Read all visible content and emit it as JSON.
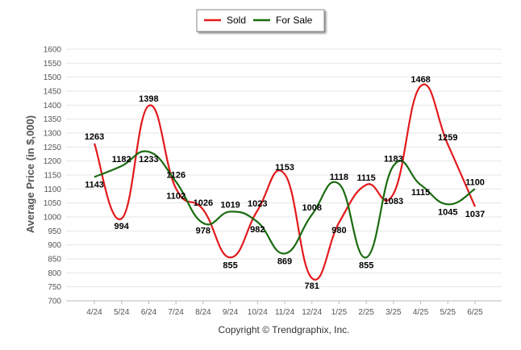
{
  "chart_data": {
    "type": "line",
    "categories": [
      "4/24",
      "5/24",
      "6/24",
      "7/24",
      "8/24",
      "9/24",
      "10/24",
      "11/24",
      "12/24",
      "1/25",
      "2/25",
      "3/25",
      "4/25",
      "5/25",
      "6/25"
    ],
    "series": [
      {
        "name": "Sold",
        "color": "#e31a1c",
        "values": [
          1263,
          994,
          1398,
          1102,
          1026,
          855,
          1023,
          1153,
          781,
          980,
          1115,
          1083,
          1468,
          1259,
          1037
        ]
      },
      {
        "name": "For Sale",
        "color": "#1a6b10",
        "values": [
          1143,
          1182,
          1233,
          1126,
          978,
          1019,
          982,
          869,
          1008,
          1118,
          855,
          1183,
          1115,
          1045,
          1100
        ]
      }
    ],
    "ylabel": "Average Price (in $,000)",
    "ylim": [
      700,
      1600
    ],
    "yticks": [
      700,
      750,
      800,
      850,
      900,
      950,
      1000,
      1050,
      1100,
      1150,
      1200,
      1250,
      1300,
      1350,
      1400,
      1450,
      1500,
      1550,
      1600
    ],
    "grid": true,
    "legend_position": "top-center"
  },
  "credit": "Copyright © Trendgraphix, Inc."
}
